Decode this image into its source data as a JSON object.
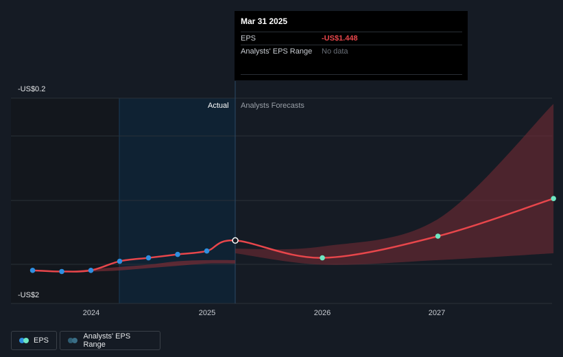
{
  "tooltip": {
    "date": "Mar 31 2025",
    "eps_label": "EPS",
    "eps_value": "-US$1.448",
    "range_label": "Analysts' EPS Range",
    "range_value": "No data"
  },
  "regions": {
    "actual": "Actual",
    "forecast": "Analysts Forecasts"
  },
  "legend": {
    "eps": "EPS",
    "range": "Analysts' EPS Range"
  },
  "colors": {
    "eps_line": "#e8464b",
    "actual_point": "#2f8fe0",
    "forecast_point": "#6ee7c2",
    "range_fill": "#7a2c34",
    "range_swatch": "#2f5e74"
  },
  "chart_data": {
    "type": "line",
    "y_ticks": [
      "-US$0.2",
      "-US$2"
    ],
    "ylim": [
      -2,
      -0.2
    ],
    "x_ticks": [
      "2024",
      "2025",
      "2026",
      "2027"
    ],
    "series": [
      {
        "name": "EPS",
        "points": [
          {
            "x": "2023-06-30",
            "y": -1.71,
            "kind": "actual"
          },
          {
            "x": "2023-09-30",
            "y": -1.72,
            "kind": "actual"
          },
          {
            "x": "2023-12-31",
            "y": -1.71,
            "kind": "actual"
          },
          {
            "x": "2024-03-31",
            "y": -1.63,
            "kind": "actual"
          },
          {
            "x": "2024-06-30",
            "y": -1.6,
            "kind": "actual"
          },
          {
            "x": "2024-09-30",
            "y": -1.57,
            "kind": "actual"
          },
          {
            "x": "2024-12-31",
            "y": -1.54,
            "kind": "actual"
          },
          {
            "x": "2025-03-31",
            "y": -1.448,
            "kind": "actual"
          },
          {
            "x": "2025-12-31",
            "y": -1.6,
            "kind": "forecast"
          },
          {
            "x": "2026-12-31",
            "y": -1.41,
            "kind": "forecast"
          },
          {
            "x": "2027-12-31",
            "y": -1.08,
            "kind": "forecast"
          }
        ]
      }
    ],
    "range": {
      "x": [
        "2025-03-31",
        "2025-12-31",
        "2026-12-31",
        "2027-12-31"
      ],
      "low": [
        -1.56,
        -1.66,
        -1.62,
        -1.56
      ],
      "high": [
        -1.52,
        -1.5,
        -1.26,
        -0.25
      ]
    },
    "past_range": {
      "x": [
        "2023-06-30",
        "2023-09-30",
        "2023-12-31",
        "2024-03-31",
        "2024-06-30",
        "2024-09-30",
        "2024-12-31",
        "2025-03-31"
      ],
      "low": [
        -1.71,
        -1.72,
        -1.72,
        -1.71,
        -1.69,
        -1.67,
        -1.65,
        -1.65
      ],
      "high": [
        -1.71,
        -1.72,
        -1.7,
        -1.68,
        -1.66,
        -1.63,
        -1.62,
        -1.62
      ]
    },
    "highlighted": "2025-03-31"
  }
}
